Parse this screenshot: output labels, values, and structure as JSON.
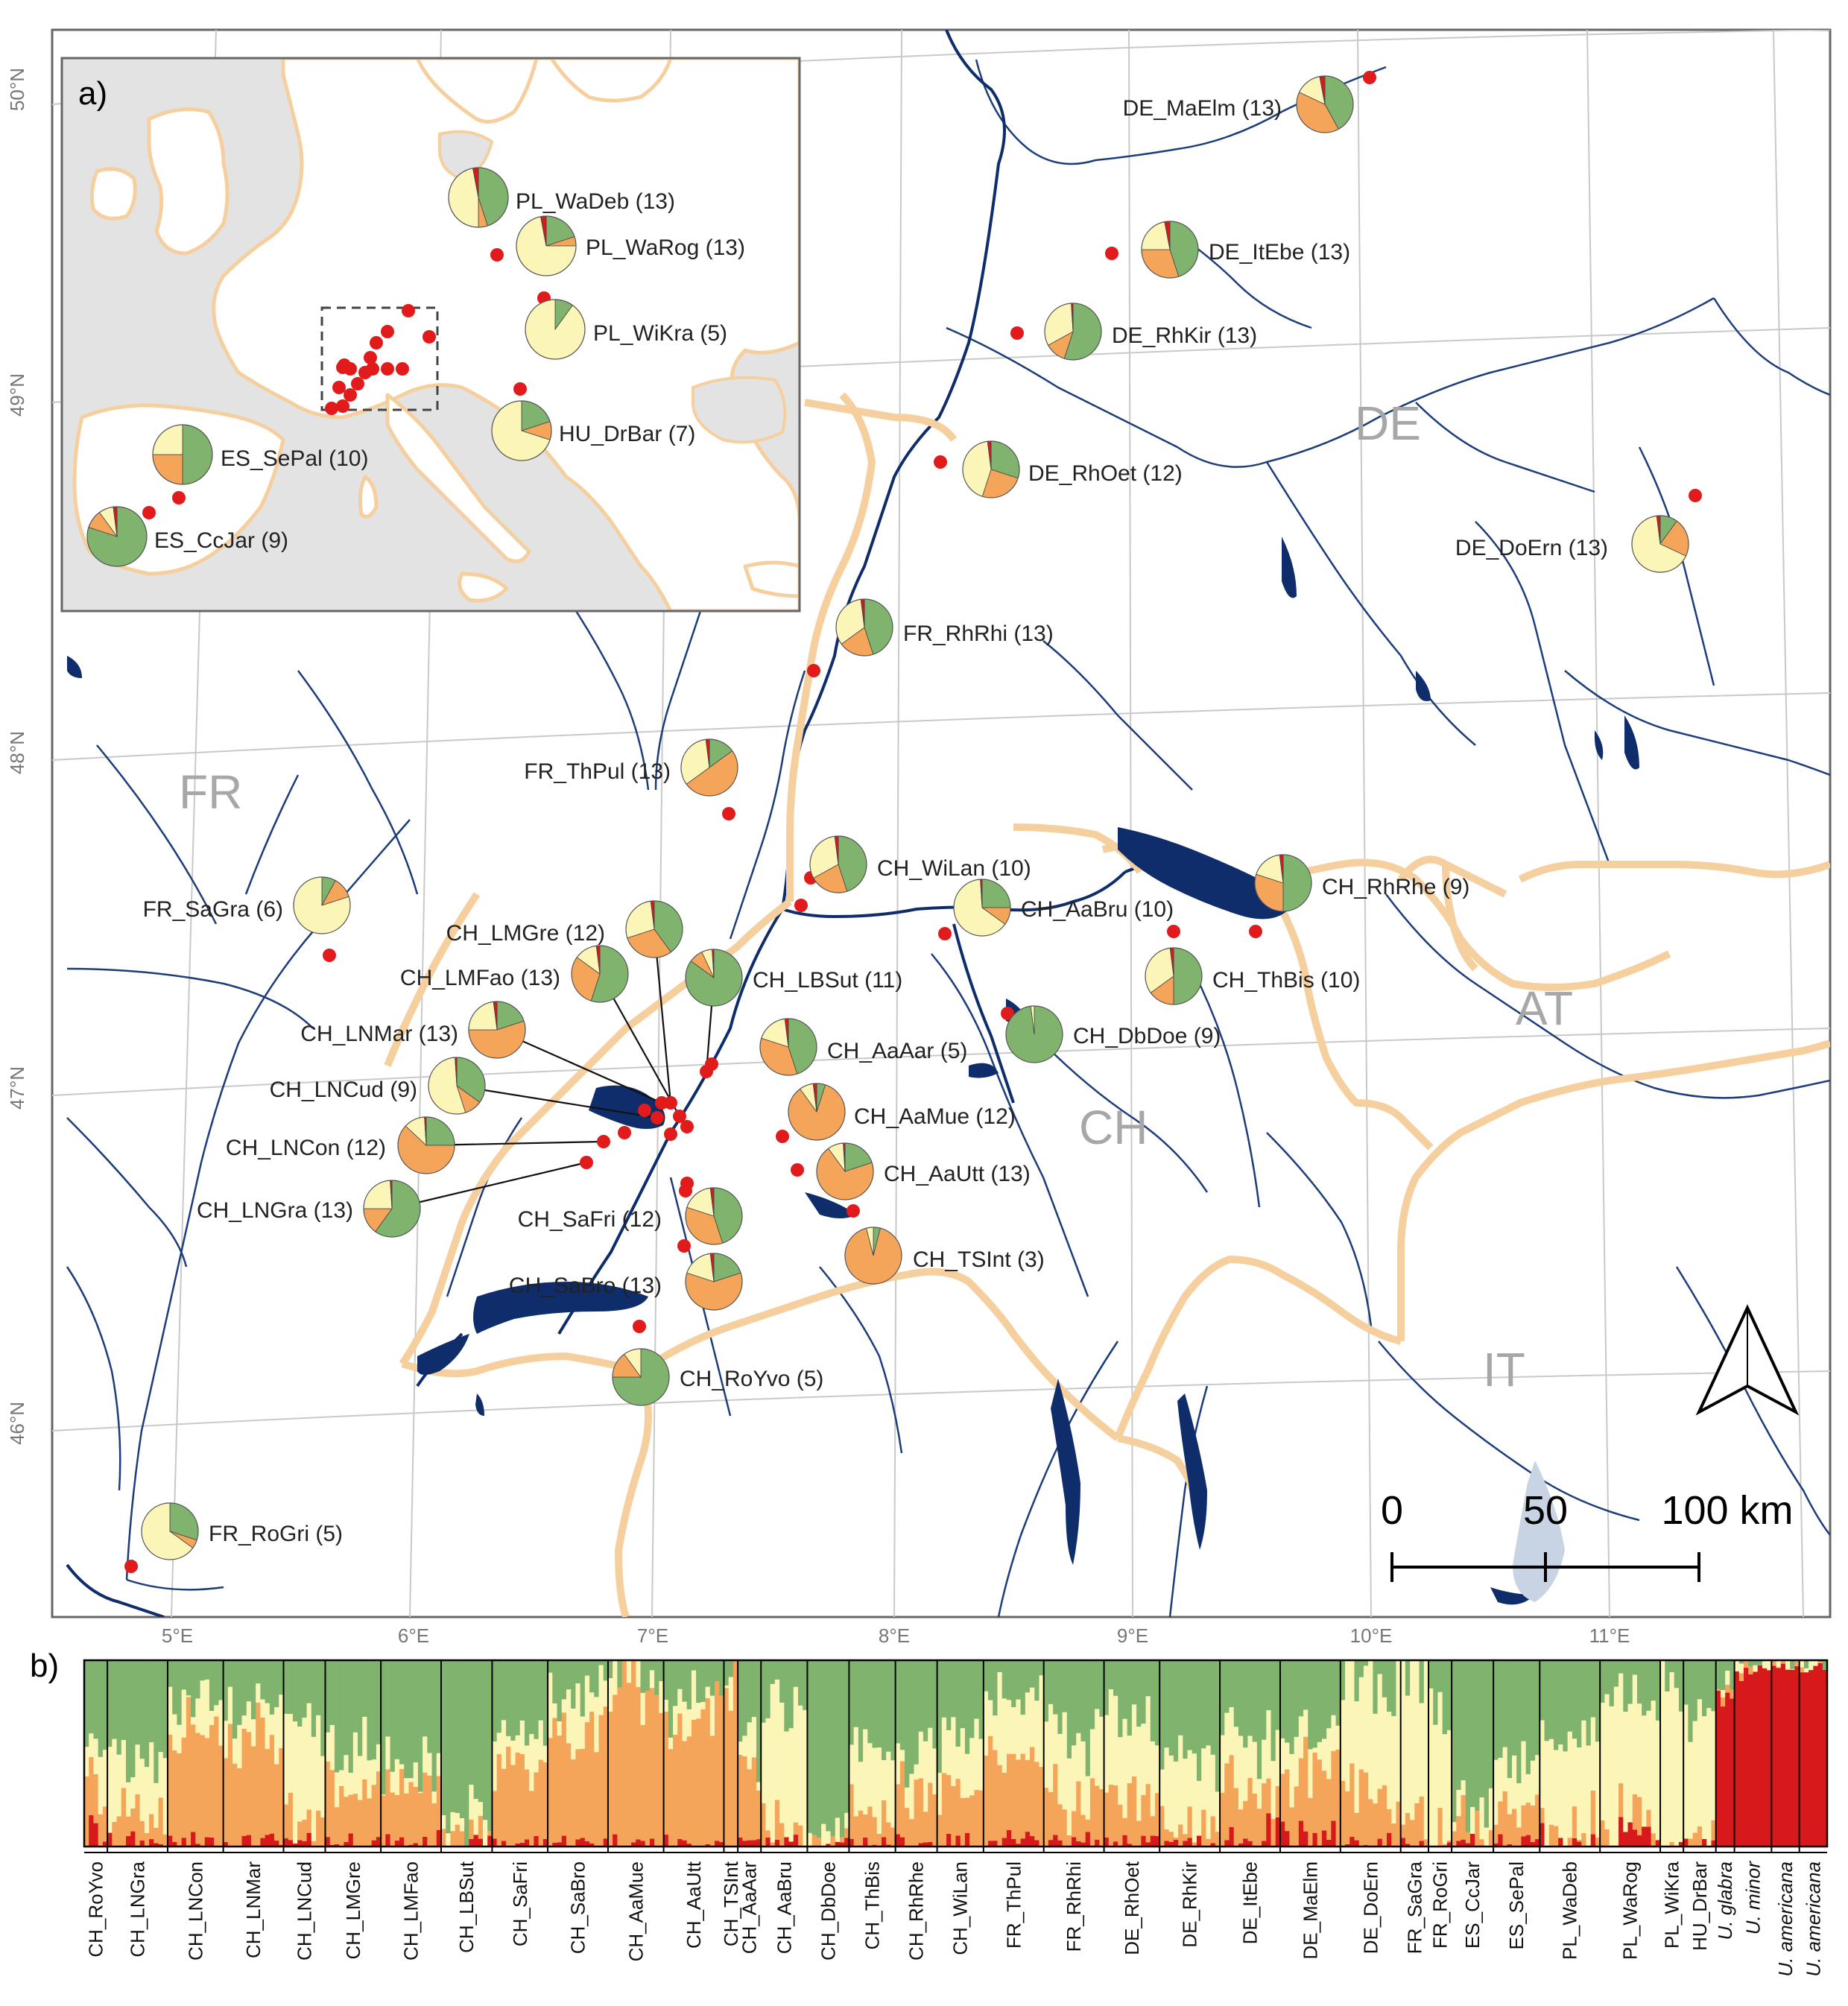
{
  "panel_labels": {
    "a": "a)",
    "b": "b)"
  },
  "latitude_labels": [
    "50°N",
    "49°N",
    "48°N",
    "47°N",
    "46°N"
  ],
  "longitude_labels": [
    "5°E",
    "6°E",
    "7°E",
    "8°E",
    "9°E",
    "10°E",
    "11°E"
  ],
  "country_labels": [
    "DE",
    "FR",
    "CH",
    "AT",
    "IT"
  ],
  "scale_bar": {
    "labels": [
      "0",
      "50",
      "100 km"
    ]
  },
  "colors": {
    "green": "#7fb36e",
    "orange": "#f5a55a",
    "yellow": "#fbf5b8",
    "red": "#d7191c",
    "lake": "#0f2d6b",
    "border": "#f6cf9e",
    "inset_land": "#e3e3e3"
  },
  "populations": [
    {
      "label": "DE_MaElm (13)",
      "fractions": [
        0.42,
        0.4,
        0.15,
        0.03
      ]
    },
    {
      "label": "DE_ItEbe (13)",
      "fractions": [
        0.45,
        0.3,
        0.22,
        0.03
      ]
    },
    {
      "label": "DE_RhKir (13)",
      "fractions": [
        0.55,
        0.12,
        0.32,
        0.01
      ]
    },
    {
      "label": "DE_RhOet (12)",
      "fractions": [
        0.3,
        0.25,
        0.43,
        0.02
      ]
    },
    {
      "label": "DE_DoErn (13)",
      "fractions": [
        0.1,
        0.22,
        0.66,
        0.02
      ]
    },
    {
      "label": "FR_RhRhi (13)",
      "fractions": [
        0.45,
        0.2,
        0.33,
        0.02
      ]
    },
    {
      "label": "FR_ThPul (13)",
      "fractions": [
        0.15,
        0.5,
        0.33,
        0.02
      ]
    },
    {
      "label": "FR_SaGra (6)",
      "fractions": [
        0.08,
        0.12,
        0.8,
        0.0
      ]
    },
    {
      "label": "CH_WiLan (10)",
      "fractions": [
        0.45,
        0.22,
        0.31,
        0.02
      ]
    },
    {
      "label": "CH_AaBru (10)",
      "fractions": [
        0.25,
        0.1,
        0.64,
        0.01
      ]
    },
    {
      "label": "CH_RhRhe (9)",
      "fractions": [
        0.5,
        0.3,
        0.18,
        0.02
      ]
    },
    {
      "label": "CH_ThBis (10)",
      "fractions": [
        0.5,
        0.15,
        0.33,
        0.02
      ]
    },
    {
      "label": "CH_LMGre (12)",
      "fractions": [
        0.4,
        0.3,
        0.28,
        0.02
      ]
    },
    {
      "label": "CH_LMFao (13)",
      "fractions": [
        0.55,
        0.3,
        0.13,
        0.02
      ]
    },
    {
      "label": "CH_LBSut (11)",
      "fractions": [
        0.85,
        0.08,
        0.06,
        0.01
      ]
    },
    {
      "label": "CH_LNMar (13)",
      "fractions": [
        0.2,
        0.55,
        0.23,
        0.02
      ]
    },
    {
      "label": "CH_AaAar (5)",
      "fractions": [
        0.45,
        0.35,
        0.18,
        0.02
      ]
    },
    {
      "label": "CH_LNCud (9)",
      "fractions": [
        0.35,
        0.1,
        0.54,
        0.01
      ]
    },
    {
      "label": "CH_AaMue (12)",
      "fractions": [
        0.05,
        0.85,
        0.08,
        0.02
      ]
    },
    {
      "label": "CH_LNCon (12)",
      "fractions": [
        0.25,
        0.62,
        0.12,
        0.01
      ]
    },
    {
      "label": "CH_AaUtt (13)",
      "fractions": [
        0.2,
        0.7,
        0.09,
        0.01
      ]
    },
    {
      "label": "CH_LNGra (13)",
      "fractions": [
        0.6,
        0.15,
        0.24,
        0.01
      ]
    },
    {
      "label": "CH_SaFri (12)",
      "fractions": [
        0.45,
        0.35,
        0.18,
        0.02
      ]
    },
    {
      "label": "CH_TSInt (3)",
      "fractions": [
        0.04,
        0.92,
        0.04,
        0.0
      ]
    },
    {
      "label": "CH_DbDoe (9)",
      "fractions": [
        0.98,
        0.0,
        0.02,
        0.0
      ]
    },
    {
      "label": "CH_SaBro (13)",
      "fractions": [
        0.2,
        0.6,
        0.18,
        0.02
      ]
    },
    {
      "label": "CH_RoYvo (5)",
      "fractions": [
        0.75,
        0.15,
        0.1,
        0.0
      ]
    },
    {
      "label": "FR_RoGri (5)",
      "fractions": [
        0.3,
        0.05,
        0.65,
        0.0
      ]
    }
  ],
  "inset_populations": [
    {
      "label": "PL_WaDeb (13)",
      "fractions": [
        0.45,
        0.05,
        0.47,
        0.03
      ]
    },
    {
      "label": "PL_WaRog (13)",
      "fractions": [
        0.2,
        0.05,
        0.72,
        0.03
      ]
    },
    {
      "label": "PL_WiKra (5)",
      "fractions": [
        0.1,
        0.0,
        0.9,
        0.0
      ]
    },
    {
      "label": "HU_DrBar (7)",
      "fractions": [
        0.2,
        0.1,
        0.7,
        0.0
      ]
    },
    {
      "label": "ES_SePal (10)",
      "fractions": [
        0.5,
        0.25,
        0.25,
        0.0
      ]
    },
    {
      "label": "ES_CcJar (9)",
      "fractions": [
        0.8,
        0.1,
        0.08,
        0.02
      ]
    }
  ],
  "bar_groups": [
    {
      "label": "CH_RoYvo",
      "n": 5,
      "mix": [
        0.4,
        0.3,
        0.27,
        0.03
      ]
    },
    {
      "label": "CH_LNGra",
      "n": 13,
      "mix": [
        0.55,
        0.15,
        0.28,
        0.02
      ]
    },
    {
      "label": "CH_LNCon",
      "n": 12,
      "mix": [
        0.25,
        0.55,
        0.18,
        0.02
      ]
    },
    {
      "label": "CH_LNMar",
      "n": 13,
      "mix": [
        0.25,
        0.5,
        0.23,
        0.02
      ]
    },
    {
      "label": "CH_LNCud",
      "n": 9,
      "mix": [
        0.35,
        0.15,
        0.49,
        0.01
      ]
    },
    {
      "label": "CH_LMGre",
      "n": 12,
      "mix": [
        0.45,
        0.3,
        0.23,
        0.02
      ]
    },
    {
      "label": "CH_LMFao",
      "n": 13,
      "mix": [
        0.55,
        0.28,
        0.15,
        0.02
      ]
    },
    {
      "label": "CH_LBSut",
      "n": 11,
      "mix": [
        0.85,
        0.07,
        0.07,
        0.01
      ]
    },
    {
      "label": "CH_SaFri",
      "n": 12,
      "mix": [
        0.4,
        0.38,
        0.2,
        0.02
      ]
    },
    {
      "label": "CH_SaBro",
      "n": 13,
      "mix": [
        0.2,
        0.55,
        0.23,
        0.02
      ]
    },
    {
      "label": "CH_AaMue",
      "n": 12,
      "mix": [
        0.06,
        0.84,
        0.08,
        0.02
      ]
    },
    {
      "label": "CH_AaUtt",
      "n": 13,
      "mix": [
        0.22,
        0.65,
        0.12,
        0.01
      ]
    },
    {
      "label": "CH_TSInt",
      "n": 3,
      "mix": [
        0.05,
        0.9,
        0.05,
        0.0
      ]
    },
    {
      "label": "CH_AaAar",
      "n": 5,
      "mix": [
        0.4,
        0.4,
        0.18,
        0.02
      ]
    },
    {
      "label": "CH_AaBru",
      "n": 10,
      "mix": [
        0.25,
        0.12,
        0.62,
        0.01
      ]
    },
    {
      "label": "CH_DbDoe",
      "n": 9,
      "mix": [
        0.95,
        0.01,
        0.04,
        0.0
      ]
    },
    {
      "label": "CH_ThBis",
      "n": 10,
      "mix": [
        0.45,
        0.18,
        0.35,
        0.02
      ]
    },
    {
      "label": "CH_RhRhe",
      "n": 9,
      "mix": [
        0.45,
        0.3,
        0.23,
        0.02
      ]
    },
    {
      "label": "CH_WiLan",
      "n": 10,
      "mix": [
        0.4,
        0.25,
        0.33,
        0.02
      ]
    },
    {
      "label": "FR_ThPul",
      "n": 13,
      "mix": [
        0.18,
        0.45,
        0.35,
        0.02
      ]
    },
    {
      "label": "FR_RhRhi",
      "n": 13,
      "mix": [
        0.4,
        0.22,
        0.36,
        0.02
      ]
    },
    {
      "label": "DE_RhOet",
      "n": 12,
      "mix": [
        0.3,
        0.25,
        0.43,
        0.02
      ]
    },
    {
      "label": "DE_RhKir",
      "n": 13,
      "mix": [
        0.5,
        0.15,
        0.34,
        0.01
      ]
    },
    {
      "label": "DE_ItEbe",
      "n": 13,
      "mix": [
        0.4,
        0.3,
        0.27,
        0.03
      ]
    },
    {
      "label": "DE_MaElm",
      "n": 13,
      "mix": [
        0.4,
        0.38,
        0.19,
        0.03
      ]
    },
    {
      "label": "DE_DoErn",
      "n": 13,
      "mix": [
        0.15,
        0.25,
        0.58,
        0.02
      ]
    },
    {
      "label": "FR_SaGra",
      "n": 6,
      "mix": [
        0.1,
        0.15,
        0.75,
        0.0
      ]
    },
    {
      "label": "FR_RoGri",
      "n": 5,
      "mix": [
        0.3,
        0.08,
        0.62,
        0.0
      ]
    },
    {
      "label": "ES_CcJar",
      "n": 9,
      "mix": [
        0.75,
        0.1,
        0.13,
        0.02
      ]
    },
    {
      "label": "ES_SePal",
      "n": 10,
      "mix": [
        0.5,
        0.22,
        0.27,
        0.01
      ]
    },
    {
      "label": "PL_WaDeb",
      "n": 13,
      "mix": [
        0.4,
        0.08,
        0.49,
        0.03
      ]
    },
    {
      "label": "PL_WaRog",
      "n": 13,
      "mix": [
        0.22,
        0.08,
        0.67,
        0.03
      ]
    },
    {
      "label": "PL_WiKra",
      "n": 5,
      "mix": [
        0.12,
        0.03,
        0.85,
        0.0
      ]
    },
    {
      "label": "HU_DrBar",
      "n": 7,
      "mix": [
        0.25,
        0.1,
        0.65,
        0.0
      ]
    },
    {
      "label": "U. glabra",
      "n": 4,
      "mix": [
        0.05,
        0.02,
        0.03,
        0.9
      ],
      "italic": true
    },
    {
      "label": "U. minor",
      "n": 8,
      "mix": [
        0.0,
        0.01,
        0.02,
        0.97
      ],
      "italic": true
    },
    {
      "label": "U. americana",
      "n": 6,
      "mix": [
        0.0,
        0.0,
        0.02,
        0.98
      ],
      "italic": true
    },
    {
      "label": "U. americana",
      "n": 6,
      "mix": [
        0.0,
        0.0,
        0.01,
        0.99
      ],
      "italic": true
    }
  ]
}
